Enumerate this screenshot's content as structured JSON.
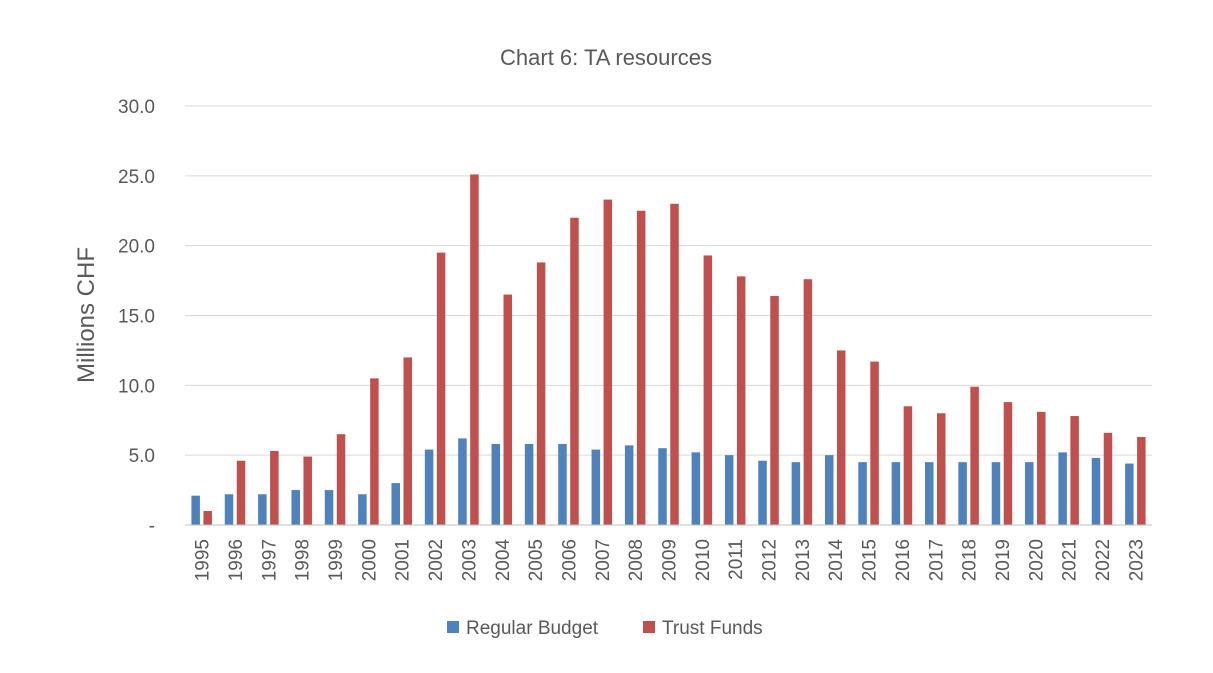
{
  "chart_data": {
    "type": "bar",
    "title": "Chart 6: TA resources",
    "xlabel": "",
    "ylabel": "Millions CHF",
    "ylim": [
      0,
      30
    ],
    "yticks": [
      0,
      5,
      10,
      15,
      20,
      25,
      30
    ],
    "ytick_labels": [
      "-",
      "5.0",
      "10.0",
      "15.0",
      "20.0",
      "25.0",
      "30.0"
    ],
    "grid": true,
    "legend_position": "bottom",
    "categories": [
      "1995",
      "1996",
      "1997",
      "1998",
      "1999",
      "2000",
      "2001",
      "2002",
      "2003",
      "2004",
      "2005",
      "2006",
      "2007",
      "2008",
      "2009",
      "2010",
      "2011",
      "2012",
      "2013",
      "2014",
      "2015",
      "2016",
      "2017",
      "2018",
      "2019",
      "2020",
      "2021",
      "2022",
      "2023"
    ],
    "series": [
      {
        "name": "Regular Budget",
        "color": "#4f81bd",
        "values": [
          2.1,
          2.2,
          2.2,
          2.5,
          2.5,
          2.2,
          3.0,
          5.4,
          6.2,
          5.8,
          5.8,
          5.8,
          5.4,
          5.7,
          5.5,
          5.2,
          5.0,
          4.6,
          4.5,
          5.0,
          4.5,
          4.5,
          4.5,
          4.5,
          4.5,
          4.5,
          5.2,
          4.8,
          4.4
        ]
      },
      {
        "name": "Trust Funds",
        "color": "#c0504d",
        "values": [
          1.0,
          4.6,
          5.3,
          4.9,
          6.5,
          10.5,
          12.0,
          19.5,
          25.1,
          16.5,
          18.8,
          22.0,
          23.3,
          22.5,
          23.0,
          19.3,
          17.8,
          16.4,
          17.6,
          12.5,
          11.7,
          8.5,
          8.0,
          9.9,
          8.8,
          8.1,
          7.8,
          6.6,
          6.3
        ]
      }
    ]
  }
}
